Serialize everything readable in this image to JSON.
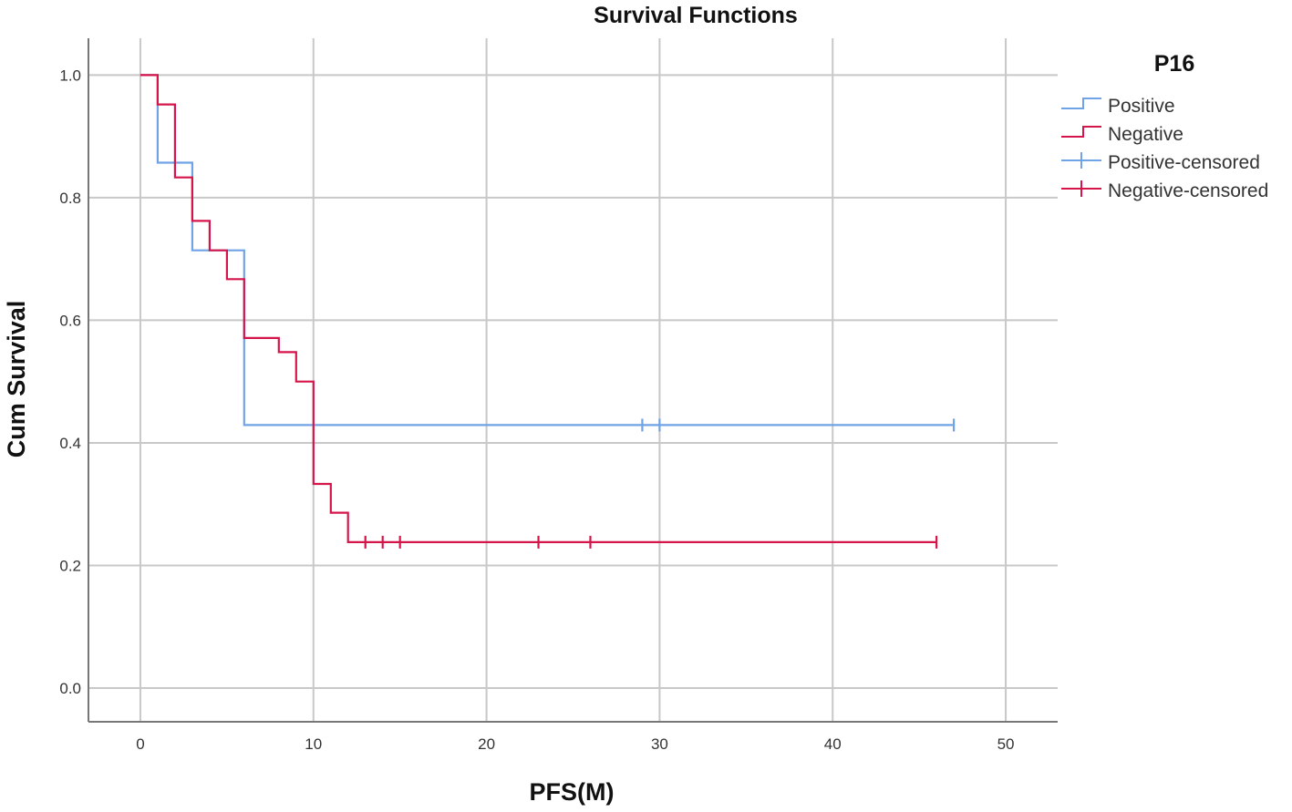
{
  "chart_data": {
    "type": "line",
    "title": "Survival Functions",
    "xlabel": "PFS(M)",
    "ylabel": "Cum Survival",
    "xlim": [
      -3,
      53
    ],
    "ylim": [
      -0.055,
      1.06
    ],
    "xticks": [
      0,
      10,
      20,
      30,
      40,
      50
    ],
    "yticks": [
      0.0,
      0.2,
      0.4,
      0.6,
      0.8,
      1.0
    ],
    "xtick_labels": [
      "0",
      "10",
      "20",
      "30",
      "40",
      "50"
    ],
    "ytick_labels": [
      "0.0",
      "0.2",
      "0.4",
      "0.6",
      "0.8",
      "1.0"
    ],
    "grid": true,
    "legend_title": "P16",
    "legend_position": "right",
    "series": [
      {
        "name": "Positive",
        "color": "#6fa3e6",
        "step_points": [
          [
            0,
            1.0
          ],
          [
            1,
            1.0
          ],
          [
            1,
            0.857
          ],
          [
            3,
            0.857
          ],
          [
            3,
            0.714
          ],
          [
            6,
            0.714
          ],
          [
            6,
            0.429
          ],
          [
            47,
            0.429
          ]
        ],
        "censored_name": "Positive-censored",
        "censored": [
          [
            29,
            0.429
          ],
          [
            30,
            0.429
          ],
          [
            47,
            0.429
          ]
        ]
      },
      {
        "name": "Negative",
        "color": "#d5154a",
        "step_points": [
          [
            0,
            1.0
          ],
          [
            1,
            1.0
          ],
          [
            1,
            0.952
          ],
          [
            2,
            0.952
          ],
          [
            2,
            0.833
          ],
          [
            3,
            0.833
          ],
          [
            3,
            0.762
          ],
          [
            4,
            0.762
          ],
          [
            4,
            0.714
          ],
          [
            5,
            0.714
          ],
          [
            5,
            0.667
          ],
          [
            6,
            0.667
          ],
          [
            6,
            0.571
          ],
          [
            8,
            0.571
          ],
          [
            8,
            0.548
          ],
          [
            9,
            0.548
          ],
          [
            9,
            0.5
          ],
          [
            10,
            0.5
          ],
          [
            10,
            0.333
          ],
          [
            11,
            0.333
          ],
          [
            11,
            0.286
          ],
          [
            12,
            0.286
          ],
          [
            12,
            0.238
          ],
          [
            46,
            0.238
          ]
        ],
        "censored_name": "Negative-censored",
        "censored": [
          [
            13,
            0.238
          ],
          [
            14,
            0.238
          ],
          [
            15,
            0.238
          ],
          [
            23,
            0.238
          ],
          [
            26,
            0.238
          ],
          [
            46,
            0.238
          ]
        ]
      }
    ]
  }
}
